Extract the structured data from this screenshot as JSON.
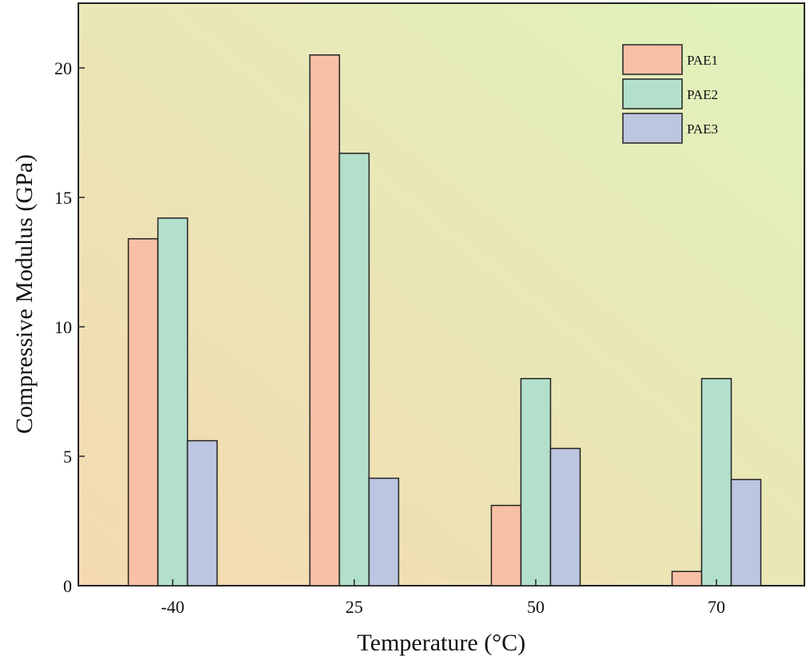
{
  "chart_data": {
    "type": "bar",
    "title": "",
    "xlabel": "Temperature (°C)",
    "ylabel": "Compressive Modulus (GPa)",
    "categories": [
      "-40",
      "25",
      "50",
      "70"
    ],
    "ylim": [
      0,
      22.5
    ],
    "yticks": [
      0,
      5,
      10,
      15,
      20
    ],
    "grid": false,
    "legend_position": "top-right",
    "series": [
      {
        "name": "PAE1",
        "color": "#f8c0a4",
        "values": [
          13.4,
          20.5,
          3.1,
          0.55
        ]
      },
      {
        "name": "PAE2",
        "color": "#b2e0cc",
        "values": [
          14.2,
          16.7,
          8.0,
          8.0
        ]
      },
      {
        "name": "PAE3",
        "color": "#bcc6e0",
        "values": [
          5.6,
          4.15,
          5.3,
          4.1
        ]
      }
    ],
    "background": {
      "gradient_from": "#f5d9b0",
      "gradient_to": "#dff3bc"
    }
  }
}
